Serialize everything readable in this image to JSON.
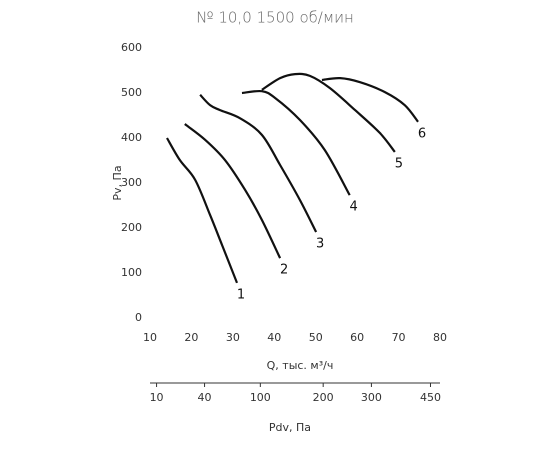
{
  "chart_data": {
    "type": "line",
    "title": "№ 10,0 1500 об/мин",
    "x_label": "Q, тыс. м³/ч",
    "y_label": "Pv, Па",
    "xlim": [
      10,
      80
    ],
    "xticks": [
      10,
      20,
      30,
      40,
      50,
      60,
      70,
      80
    ],
    "ylim": [
      0,
      600
    ],
    "yticks": [
      0,
      100,
      200,
      300,
      400,
      500,
      600
    ],
    "grid": false,
    "series": [
      {
        "name": "1",
        "color": "#111111",
        "x": [
          14.1,
          17.2,
          20.9,
          24.5,
          27.4,
          31.0
        ],
        "values": [
          400,
          351,
          307,
          229,
          162,
          78
        ]
      },
      {
        "name": "2",
        "color": "#111111",
        "x": [
          18.4,
          23.3,
          28.1,
          33.0,
          37.0,
          41.4
        ],
        "values": [
          431,
          396,
          351,
          284,
          218,
          133
        ]
      },
      {
        "name": "3",
        "color": "#111111",
        "x": [
          22.1,
          24.5,
          26.9,
          31.7,
          37.0,
          41.4,
          46.2,
          50.1
        ],
        "values": [
          496,
          473,
          462,
          444,
          407,
          340,
          262,
          191
        ]
      },
      {
        "name": "4",
        "color": "#111111",
        "x": [
          32.2,
          37.0,
          40.2,
          46.2,
          52.2,
          58.2
        ],
        "values": [
          500,
          504,
          489,
          440,
          373,
          273
        ]
      },
      {
        "name": "5",
        "color": "#111111",
        "x": [
          37.0,
          41.4,
          45.0,
          48.6,
          53.4,
          59.5,
          65.5,
          69.1
        ],
        "values": [
          507,
          533,
          542,
          538,
          511,
          462,
          411,
          369
        ]
      },
      {
        "name": "6",
        "color": "#111111",
        "x": [
          51.5,
          55.9,
          60.7,
          66.7,
          71.5,
          74.7
        ],
        "values": [
          529,
          533,
          524,
          502,
          473,
          436
        ]
      }
    ],
    "x2_label": "Pdv, Па",
    "x2scale": "sqrt",
    "x2lim": [
      7.45,
      477
    ],
    "x2ticks": [
      10,
      40,
      100,
      200,
      300,
      450
    ]
  }
}
